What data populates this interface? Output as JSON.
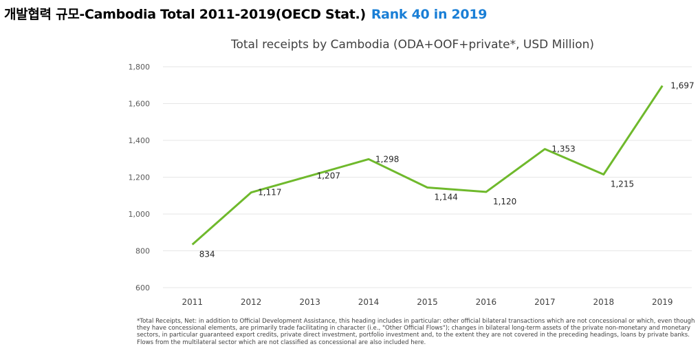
{
  "header": {
    "title": "개발협력 규모-Cambodia Total 2011-2019(OECD Stat.)",
    "rank": "Rank 40 in 2019"
  },
  "colors": {
    "line": "#6fb92c",
    "rank": "#1a7fd6",
    "grid": "#e6e6e6",
    "text": "#404040"
  },
  "chart_data": {
    "type": "line",
    "title": "Total receipts by Cambodia (ODA+OOF+private*, USD Million)",
    "categories": [
      "2011",
      "2012",
      "2013",
      "2014",
      "2015",
      "2016",
      "2017",
      "2018",
      "2019"
    ],
    "series": [
      {
        "values": [
          834,
          1117,
          1207,
          1298,
          1144,
          1120,
          1353,
          1215,
          1697
        ]
      }
    ],
    "data_labels": [
      "834",
      "1,117",
      "1,207",
      "1,298",
      "1,144",
      "1,120",
      "1,353",
      "1,215",
      "1,697"
    ],
    "yticks": [
      "600",
      "800",
      "1,000",
      "1,200",
      "1,400",
      "1,600",
      "1,800"
    ],
    "ytick_values": [
      600,
      800,
      1000,
      1200,
      1400,
      1600,
      1800
    ],
    "ylim": [
      600,
      1800
    ],
    "grid": true,
    "legend": "none",
    "xlabel": "",
    "ylabel": ""
  },
  "footnote": "*Total Receipts, Net: in addition to Official Development Assistance, this heading includes in particular: other official bilateral transactions which are not concessional or which, even though they have concessional elements, are primarily trade facilitating in character (i.e., \"Other Official Flows\"); changes in bilateral long-term assets of the private non-monetary and monetary sectors, in particular guaranteed export credits, private direct investment, portfolio investment and, to the extent they are not covered in the preceding headings, loans by private banks. Flows from the multilateral sector which are not classified as concessional are also included here."
}
